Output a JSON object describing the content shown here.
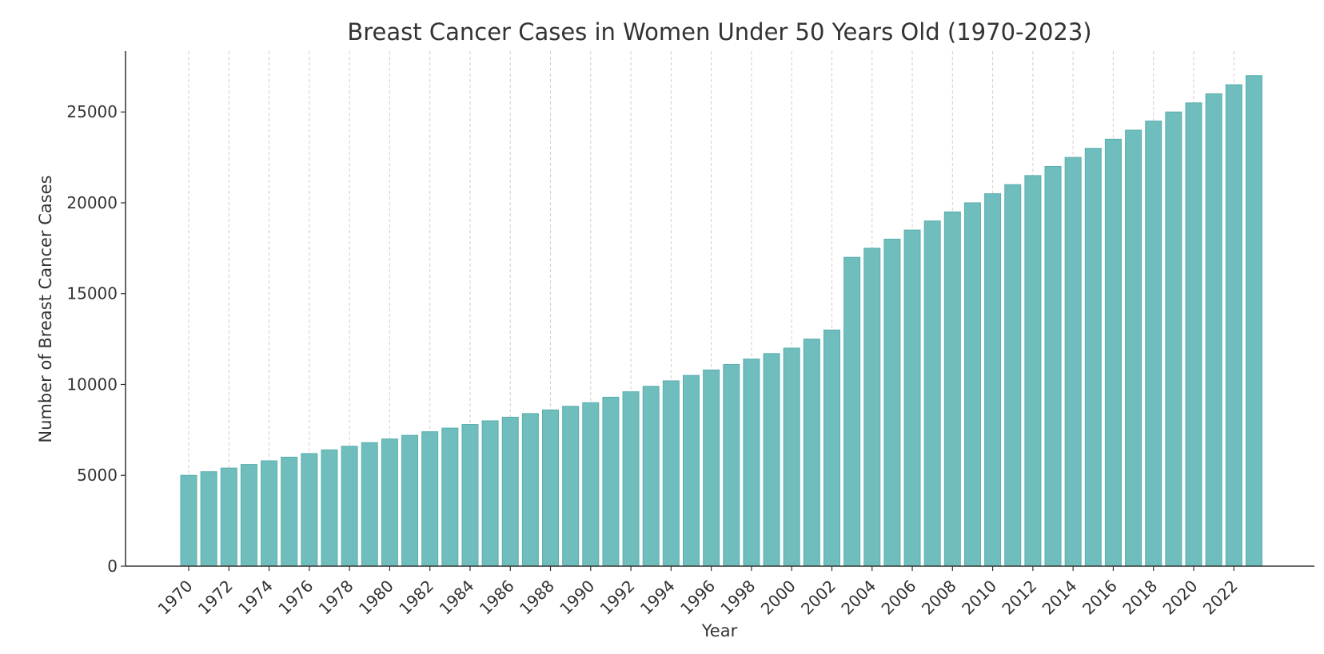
{
  "chart_data": {
    "type": "bar",
    "title": "Breast Cancer Cases in Women Under 50 Years Old (1970-2023)",
    "xlabel": "Year",
    "ylabel": "Number of Breast Cancer Cases",
    "categories": [
      1970,
      1971,
      1972,
      1973,
      1974,
      1975,
      1976,
      1977,
      1978,
      1979,
      1980,
      1981,
      1982,
      1983,
      1984,
      1985,
      1986,
      1987,
      1988,
      1989,
      1990,
      1991,
      1992,
      1993,
      1994,
      1995,
      1996,
      1997,
      1998,
      1999,
      2000,
      2001,
      2002,
      2003,
      2004,
      2005,
      2006,
      2007,
      2008,
      2009,
      2010,
      2011,
      2012,
      2013,
      2014,
      2015,
      2016,
      2017,
      2018,
      2019,
      2020,
      2021,
      2022,
      2023
    ],
    "values": [
      5000,
      5200,
      5400,
      5600,
      5800,
      6000,
      6200,
      6400,
      6600,
      6800,
      7000,
      7200,
      7400,
      7600,
      7800,
      8000,
      8200,
      8400,
      8600,
      8800,
      9000,
      9300,
      9600,
      9900,
      10200,
      10500,
      10800,
      11100,
      11400,
      11700,
      12000,
      12500,
      13000,
      17000,
      17500,
      18000,
      18500,
      19000,
      19500,
      20000,
      20500,
      21000,
      21500,
      22000,
      22500,
      23000,
      23500,
      24000,
      24500,
      25000,
      25500,
      26000,
      26500,
      27000
    ],
    "x_tick_labels": [
      "1970",
      "1972",
      "1974",
      "1976",
      "1978",
      "1980",
      "1982",
      "1984",
      "1986",
      "1988",
      "1990",
      "1992",
      "1994",
      "1996",
      "1998",
      "2000",
      "2002",
      "2004",
      "2006",
      "2008",
      "2010",
      "2012",
      "2014",
      "2016",
      "2018",
      "2020",
      "2022"
    ],
    "y_ticks": [
      0,
      5000,
      10000,
      15000,
      20000,
      25000
    ],
    "y_tick_labels": [
      "0",
      "5000",
      "10000",
      "15000",
      "20000",
      "25000"
    ],
    "ylim": [
      0,
      28350
    ],
    "grid": "vertical dashed",
    "bar_color": "#6fbdbd",
    "bar_edge_color": "#5aaeae"
  }
}
